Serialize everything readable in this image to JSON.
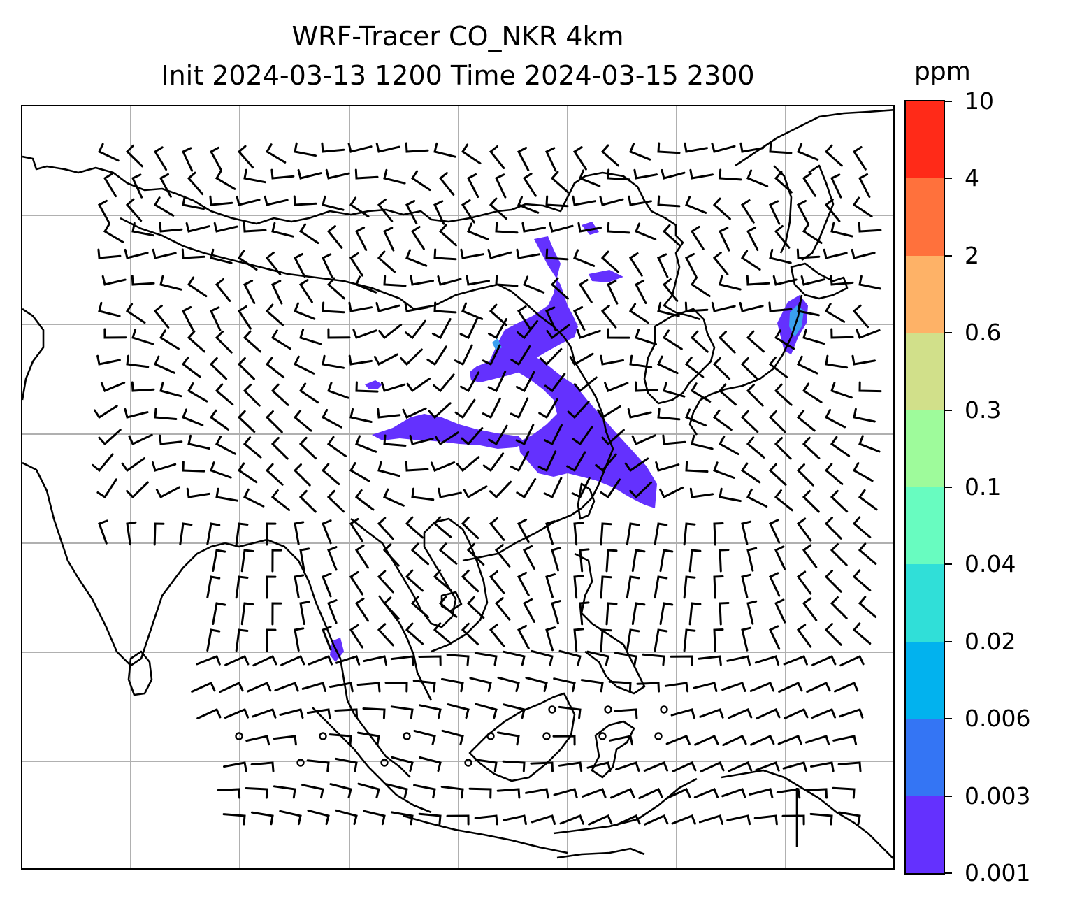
{
  "title": {
    "line1": "WRF-Tracer CO_NKR 4km",
    "line2": "Init 2024-03-13 1200 Time 2024-03-15 2300"
  },
  "colorbar": {
    "unit": "ppm",
    "levels": [
      "10",
      "4",
      "2",
      "0.6",
      "0.3",
      "0.1",
      "0.04",
      "0.02",
      "0.006",
      "0.003",
      "0.001"
    ],
    "colors": [
      "#ff2a18",
      "#ff713c",
      "#feb267",
      "#d1e08a",
      "#9efb9b",
      "#68fcc0",
      "#30dfd8",
      "#02b2ee",
      "#3475f4",
      "#6431fe"
    ]
  },
  "map": {
    "plume_color": "#6431fe",
    "plume_high_color": "#3aa0f0",
    "grid_color": "#b0b0b0",
    "coast_color": "#000000",
    "barb_color": "#000000"
  }
}
